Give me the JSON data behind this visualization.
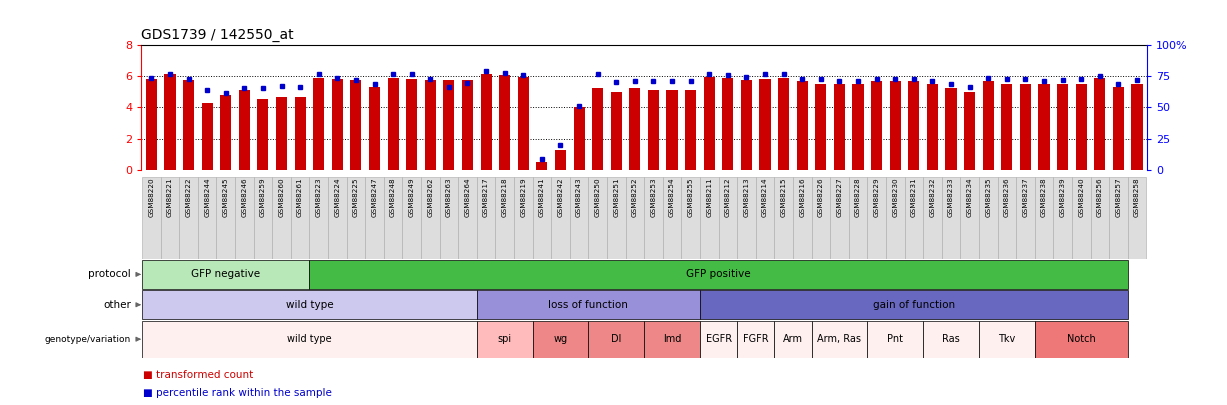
{
  "title": "GDS1739 / 142550_at",
  "samples": [
    "GSM88220",
    "GSM88221",
    "GSM88222",
    "GSM88244",
    "GSM88245",
    "GSM88246",
    "GSM88259",
    "GSM88260",
    "GSM88261",
    "GSM88223",
    "GSM88224",
    "GSM88225",
    "GSM88247",
    "GSM88248",
    "GSM88249",
    "GSM88262",
    "GSM88263",
    "GSM88264",
    "GSM88217",
    "GSM88218",
    "GSM88219",
    "GSM88241",
    "GSM88242",
    "GSM88243",
    "GSM88250",
    "GSM88251",
    "GSM88252",
    "GSM88253",
    "GSM88254",
    "GSM88255",
    "GSM88211",
    "GSM88212",
    "GSM88213",
    "GSM88214",
    "GSM88215",
    "GSM88216",
    "GSM88226",
    "GSM88227",
    "GSM88228",
    "GSM88229",
    "GSM88230",
    "GSM88231",
    "GSM88232",
    "GSM88233",
    "GSM88234",
    "GSM88235",
    "GSM88236",
    "GSM88237",
    "GSM88238",
    "GSM88239",
    "GSM88240",
    "GSM88256",
    "GSM88257",
    "GSM88258"
  ],
  "red_values": [
    5.8,
    6.1,
    5.75,
    4.3,
    4.8,
    5.1,
    4.5,
    4.65,
    4.65,
    5.9,
    5.8,
    5.75,
    5.3,
    5.9,
    5.8,
    5.75,
    5.75,
    5.75,
    6.1,
    6.05,
    5.95,
    0.5,
    1.3,
    4.0,
    5.25,
    5.0,
    5.25,
    5.1,
    5.1,
    5.1,
    5.95,
    5.85,
    5.75,
    5.8,
    5.85,
    5.7,
    5.5,
    5.5,
    5.5,
    5.65,
    5.7,
    5.7,
    5.5,
    5.2,
    5.0,
    5.7,
    5.5,
    5.5,
    5.5,
    5.5,
    5.5,
    5.85,
    5.3,
    5.5
  ],
  "blue_values": [
    5.9,
    6.1,
    5.8,
    5.1,
    4.9,
    5.2,
    5.2,
    5.35,
    5.3,
    6.1,
    5.85,
    5.75,
    5.5,
    6.1,
    6.1,
    5.8,
    5.3,
    5.55,
    6.3,
    6.2,
    6.05,
    0.7,
    1.6,
    4.1,
    6.1,
    5.6,
    5.7,
    5.7,
    5.7,
    5.7,
    6.1,
    6.05,
    5.95,
    6.1,
    6.1,
    5.8,
    5.8,
    5.65,
    5.7,
    5.8,
    5.8,
    5.8,
    5.7,
    5.5,
    5.3,
    5.9,
    5.8,
    5.8,
    5.7,
    5.75,
    5.8,
    6.0,
    5.5,
    5.75
  ],
  "protocol_groups": [
    {
      "label": "GFP negative",
      "start": 0,
      "end": 9,
      "color": "#b8e8b8"
    },
    {
      "label": "GFP positive",
      "start": 9,
      "end": 53,
      "color": "#44bb44"
    }
  ],
  "other_groups": [
    {
      "label": "wild type",
      "start": 0,
      "end": 18,
      "color": "#ccc8ee"
    },
    {
      "label": "loss of function",
      "start": 18,
      "end": 30,
      "color": "#9890d8"
    },
    {
      "label": "gain of function",
      "start": 30,
      "end": 53,
      "color": "#6868c0"
    }
  ],
  "genotype_groups": [
    {
      "label": "wild type",
      "start": 0,
      "end": 18,
      "color": "#fff0f0"
    },
    {
      "label": "spi",
      "start": 18,
      "end": 21,
      "color": "#ffbbbb"
    },
    {
      "label": "wg",
      "start": 21,
      "end": 24,
      "color": "#ee8888"
    },
    {
      "label": "Dl",
      "start": 24,
      "end": 27,
      "color": "#ee8888"
    },
    {
      "label": "lmd",
      "start": 27,
      "end": 30,
      "color": "#ee8888"
    },
    {
      "label": "EGFR",
      "start": 30,
      "end": 32,
      "color": "#fff0f0"
    },
    {
      "label": "FGFR",
      "start": 32,
      "end": 34,
      "color": "#fff0f0"
    },
    {
      "label": "Arm",
      "start": 34,
      "end": 36,
      "color": "#fff0f0"
    },
    {
      "label": "Arm, Ras",
      "start": 36,
      "end": 39,
      "color": "#fff0f0"
    },
    {
      "label": "Pnt",
      "start": 39,
      "end": 42,
      "color": "#fff0f0"
    },
    {
      "label": "Ras",
      "start": 42,
      "end": 45,
      "color": "#fff0f0"
    },
    {
      "label": "Tkv",
      "start": 45,
      "end": 48,
      "color": "#fff0f0"
    },
    {
      "label": "Notch",
      "start": 48,
      "end": 53,
      "color": "#ee7777"
    }
  ],
  "bar_color": "#cc0000",
  "dot_color": "#0000cc",
  "legend_red": "transformed count",
  "legend_blue": "percentile rank within the sample",
  "row_labels": [
    "protocol",
    "other",
    "genotype/variation"
  ],
  "dotted_lines": [
    2,
    4,
    6
  ],
  "ylim": [
    0,
    8
  ],
  "yticks_left": [
    0,
    2,
    4,
    6,
    8
  ],
  "right_tick_labels": [
    "0",
    "25",
    "50",
    "75",
    "100%"
  ]
}
